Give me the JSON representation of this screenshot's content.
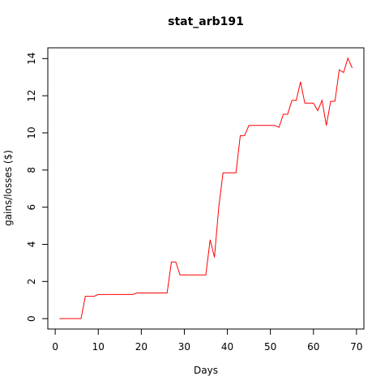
{
  "chart_data": {
    "type": "line",
    "title": "stat_arb191",
    "x_label": "Days",
    "y_label": "gains/losses ($)",
    "x": [
      1,
      2,
      3,
      4,
      5,
      6,
      7,
      8,
      9,
      10,
      11,
      12,
      13,
      14,
      15,
      16,
      17,
      18,
      19,
      20,
      21,
      22,
      23,
      24,
      25,
      26,
      27,
      28,
      29,
      30,
      31,
      32,
      33,
      34,
      35,
      36,
      37,
      38,
      39,
      40,
      41,
      42,
      43,
      44,
      45,
      46,
      47,
      48,
      49,
      50,
      51,
      52,
      53,
      54,
      55,
      56,
      57,
      58,
      59,
      60,
      61,
      62,
      63,
      64,
      65,
      66,
      67,
      68,
      69
    ],
    "series": [
      {
        "name": "stat_arb191",
        "color": "#ff0000",
        "values": [
          0,
          0,
          0,
          0,
          0,
          0,
          1.2,
          1.2,
          1.2,
          1.3,
          1.3,
          1.3,
          1.3,
          1.3,
          1.3,
          1.3,
          1.3,
          1.3,
          1.38,
          1.38,
          1.38,
          1.38,
          1.38,
          1.38,
          1.38,
          1.38,
          3.05,
          3.05,
          2.35,
          2.35,
          2.35,
          2.35,
          2.35,
          2.35,
          2.35,
          4.25,
          3.3,
          6.0,
          7.85,
          7.85,
          7.85,
          7.85,
          9.85,
          9.85,
          10.4,
          10.4,
          10.4,
          10.4,
          10.4,
          10.4,
          10.4,
          10.3,
          11.0,
          11.0,
          11.75,
          11.75,
          12.75,
          11.6,
          11.6,
          11.6,
          11.2,
          11.75,
          10.4,
          11.7,
          11.7,
          13.4,
          13.25,
          14.02,
          13.5
        ]
      }
    ],
    "xlim": [
      -1.72,
      71.72
    ],
    "ylim": [
      -0.56,
      14.58
    ],
    "xticks": [
      0,
      10,
      20,
      30,
      40,
      50,
      60,
      70
    ],
    "yticks": [
      0,
      2,
      4,
      6,
      8,
      10,
      12,
      14
    ]
  }
}
